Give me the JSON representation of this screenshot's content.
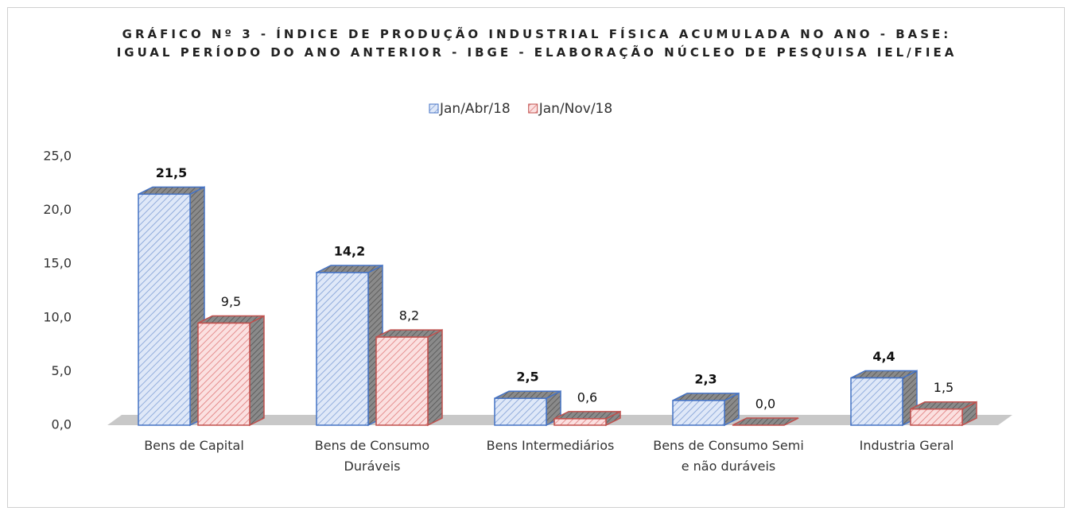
{
  "chart_data": {
    "type": "bar3d",
    "title": "GRÁFICO Nº 3 - ÍNDICE DE PRODUÇÃO INDUSTRIAL FÍSICA ACUMULADA NO ANO - BASE: IGUAL PERÍODO DO ANO ANTERIOR - IBGE - ELABORAÇÃO NÚCLEO DE PESQUISA IEL/FIEA",
    "categories": [
      "Bens de Capital",
      "Bens de Consumo Duráveis",
      "Bens Intermediários",
      "Bens de Consumo Semi e não duráveis",
      "Industria Geral"
    ],
    "series": [
      {
        "name": "Jan/Abr/18",
        "color": "#4472c4",
        "values": [
          21.5,
          14.2,
          2.5,
          2.3,
          4.4
        ],
        "value_labels": [
          "21,5",
          "14,2",
          "2,5",
          "2,3",
          "4,4"
        ]
      },
      {
        "name": "Jan/Nov/18",
        "color": "#c0504d",
        "values": [
          9.5,
          8.2,
          0.6,
          0.0,
          1.5
        ],
        "value_labels": [
          "9,5",
          "8,2",
          "0,6",
          "0,0",
          "1,5"
        ]
      }
    ],
    "ylim": [
      0,
      25
    ],
    "yticks": [
      {
        "value": 0,
        "label": "0,0"
      },
      {
        "value": 5,
        "label": "5,0"
      },
      {
        "value": 10,
        "label": "10,0"
      },
      {
        "value": 15,
        "label": "15,0"
      },
      {
        "value": 20,
        "label": "20,0"
      },
      {
        "value": 25,
        "label": "25,0"
      }
    ],
    "legend": "top"
  }
}
